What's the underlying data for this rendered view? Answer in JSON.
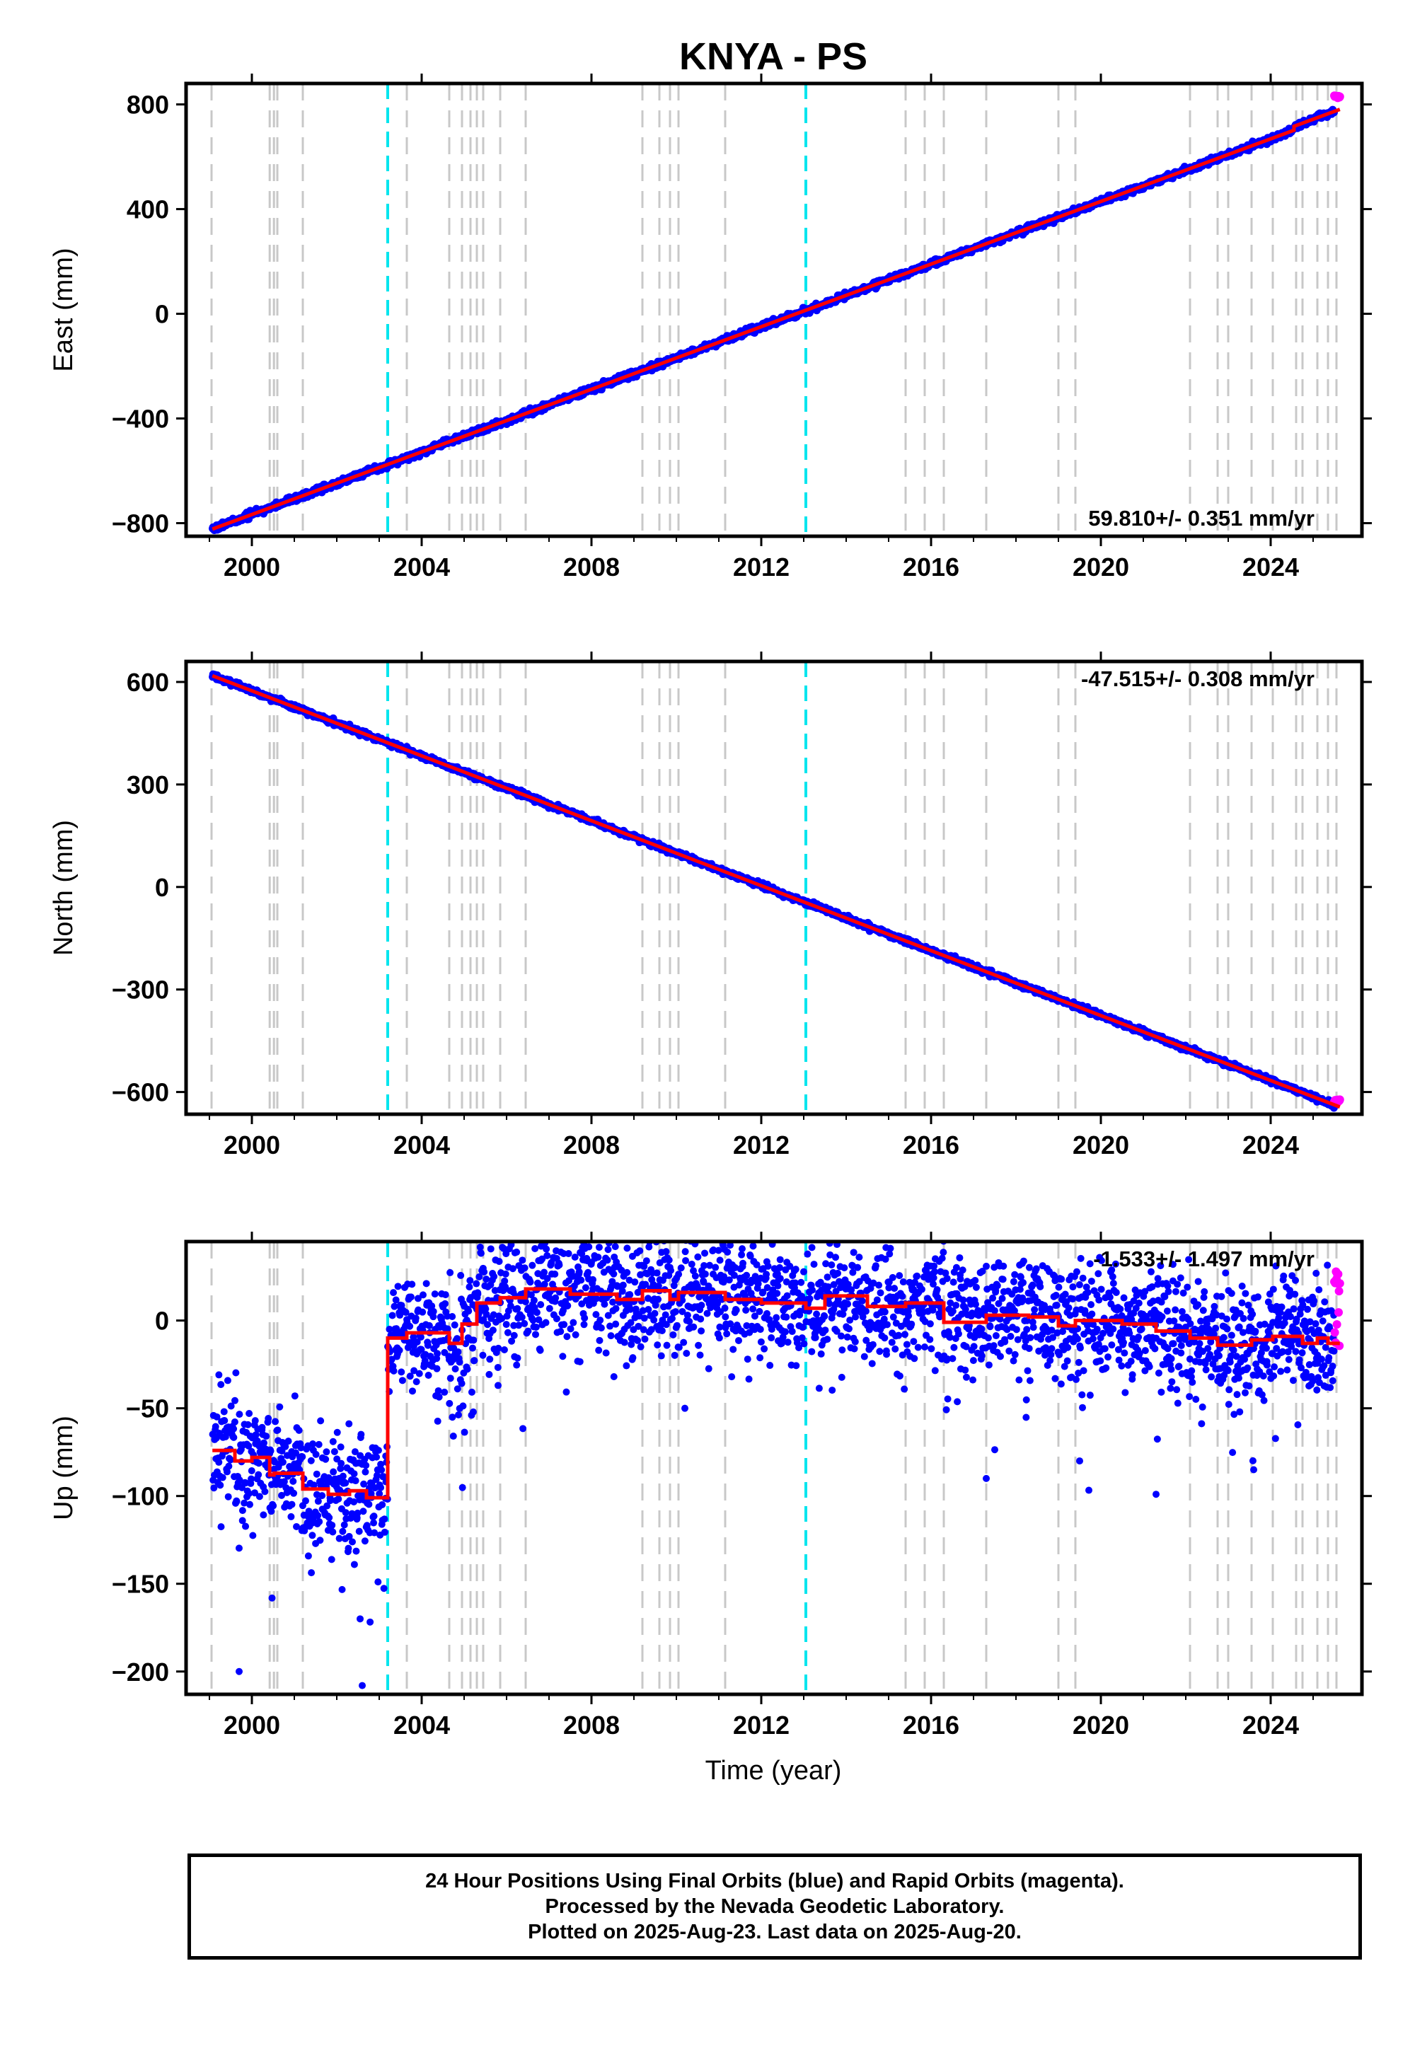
{
  "colors": {
    "final_orbits": "#0000ff",
    "rapid_orbits": "#ff00ff",
    "model": "#ff0000",
    "equipment_change_lines": "#c8c8c8",
    "earthquake_lines": "#00e5ee",
    "frame": "#000000"
  },
  "chart_data": {
    "type": "scatter",
    "title": "KNYA - PS",
    "xlabel": "Time (year)",
    "xlim": [
      1998.45,
      2026.15
    ],
    "x_ticks": [
      "2000",
      "2004",
      "2008",
      "2012",
      "2016",
      "2020",
      "2024"
    ],
    "x_tick_values": [
      2000,
      2004,
      2008,
      2012,
      2016,
      2020,
      2024
    ],
    "data_start": 1999.07,
    "data_end": 2025.63,
    "rapid_start": 2025.5,
    "equipment_change_epochs": [
      1999.05,
      2000.42,
      2000.52,
      2000.6,
      2001.2,
      2003.65,
      2004.65,
      2004.95,
      2005.15,
      2005.3,
      2005.45,
      2005.85,
      2006.45,
      2009.2,
      2009.6,
      2009.85,
      2010.05,
      2011.15,
      2015.4,
      2015.85,
      2016.3,
      2017.3,
      2019.0,
      2019.4,
      2022.1,
      2022.75,
      2023.0,
      2023.55,
      2024.05,
      2024.6,
      2024.75,
      2025.1,
      2025.35,
      2025.55
    ],
    "earthquake_epochs": [
      2003.2,
      2013.05
    ],
    "panels": [
      {
        "name": "east",
        "ylabel": "East (mm)",
        "ylim": [
          -850,
          880
        ],
        "y_ticks": [
          "800",
          "400",
          "0",
          "−400",
          "−800"
        ],
        "y_tick_values": [
          800,
          400,
          0,
          -400,
          -800
        ],
        "rate_label": "59.810+/- 0.351 mm/yr",
        "rate_label_position": "bottom-right",
        "model": {
          "rate": 59.81,
          "intercept_at_2000": -767,
          "offsets": [
            {
              "t": 2024.55,
              "dy": 15
            }
          ]
        },
        "scatter_sigma": 6,
        "series": [
          {
            "name": "Final Orbits (blue)",
            "x_range": [
              1999.07,
              2025.5
            ],
            "y_range": [
              -820,
              820
            ]
          },
          {
            "name": "Rapid Orbits (magenta)",
            "x_range": [
              2025.5,
              2025.63
            ],
            "y_range": [
              825,
              835
            ]
          }
        ]
      },
      {
        "name": "north",
        "ylabel": "North (mm)",
        "ylim": [
          -665,
          660
        ],
        "y_ticks": [
          "600",
          "300",
          "0",
          "−300",
          "−600"
        ],
        "y_tick_values": [
          600,
          300,
          0,
          -300,
          -600
        ],
        "rate_label": "-47.515+/- 0.308 mm/yr",
        "rate_label_position": "top-right",
        "model": {
          "rate": -47.515,
          "intercept_at_2000": 574,
          "offsets": []
        },
        "scatter_sigma": 4,
        "series": [
          {
            "name": "Final Orbits (blue)",
            "x_range": [
              1999.07,
              2025.5
            ],
            "y_range": [
              625,
              -620
            ]
          },
          {
            "name": "Rapid Orbits (magenta)",
            "x_range": [
              2025.5,
              2025.63
            ],
            "y_range": [
              -622,
              -628
            ]
          }
        ]
      },
      {
        "name": "up",
        "ylabel": "Up (mm)",
        "ylim": [
          -213,
          45
        ],
        "y_ticks": [
          "0",
          "−50",
          "−100",
          "−150",
          "−200"
        ],
        "y_tick_values": [
          0,
          -50,
          -100,
          -150,
          -200
        ],
        "rate_label": "-1.533+/- 1.497 mm/yr",
        "rate_label_position": "top-right",
        "model_steps": [
          [
            1999.07,
            -74
          ],
          [
            1999.6,
            -80
          ],
          [
            2000.0,
            -78
          ],
          [
            2000.42,
            -88
          ],
          [
            2000.52,
            -87
          ],
          [
            2001.2,
            -96
          ],
          [
            2001.8,
            -99
          ],
          [
            2002.3,
            -97
          ],
          [
            2002.7,
            -101
          ],
          [
            2003.2,
            -10
          ],
          [
            2003.65,
            -7
          ],
          [
            2004.65,
            -13
          ],
          [
            2004.95,
            -2
          ],
          [
            2005.3,
            10
          ],
          [
            2005.85,
            13
          ],
          [
            2006.45,
            18
          ],
          [
            2007.5,
            15
          ],
          [
            2008.6,
            12
          ],
          [
            2009.2,
            17
          ],
          [
            2009.85,
            12
          ],
          [
            2010.05,
            16
          ],
          [
            2011.15,
            12
          ],
          [
            2012.0,
            10
          ],
          [
            2013.05,
            7
          ],
          [
            2013.5,
            14
          ],
          [
            2014.5,
            8
          ],
          [
            2015.4,
            10
          ],
          [
            2016.3,
            -1
          ],
          [
            2017.3,
            3
          ],
          [
            2018.3,
            2
          ],
          [
            2019.0,
            -3
          ],
          [
            2019.4,
            0
          ],
          [
            2020.5,
            -2
          ],
          [
            2021.3,
            -6
          ],
          [
            2022.1,
            -10
          ],
          [
            2022.75,
            -14
          ],
          [
            2023.55,
            -11
          ],
          [
            2024.05,
            -9
          ],
          [
            2024.75,
            -13
          ],
          [
            2025.1,
            -10
          ],
          [
            2025.35,
            -13
          ],
          [
            2025.63,
            -13
          ]
        ],
        "scatter_sigma": 17,
        "series": [
          {
            "name": "Final Orbits (blue)",
            "x_range": [
              1999.07,
              2025.5
            ],
            "y_range": [
              -208,
              40
            ]
          },
          {
            "name": "Rapid Orbits (magenta)",
            "x_range": [
              2025.5,
              2025.63
            ],
            "y_range": [
              -15,
              30
            ]
          }
        ],
        "notable_outliers": [
          {
            "x": 1999.7,
            "y": -200
          },
          {
            "x": 2002.6,
            "y": -208
          },
          {
            "x": 2002.55,
            "y": -170
          },
          {
            "x": 2005.8,
            "y": -37
          },
          {
            "x": 2010.2,
            "y": -50
          },
          {
            "x": 2017.3,
            "y": -90
          },
          {
            "x": 2019.5,
            "y": -80
          },
          {
            "x": 2021.3,
            "y": -99
          },
          {
            "x": 2023.6,
            "y": -85
          }
        ]
      }
    ]
  },
  "caption": {
    "line1": "24 Hour Positions Using Final Orbits (blue) and Rapid Orbits (magenta).",
    "line2": "Processed by the Nevada Geodetic Laboratory.",
    "line3": "Plotted on 2025-Aug-23. Last data on 2025-Aug-20."
  }
}
